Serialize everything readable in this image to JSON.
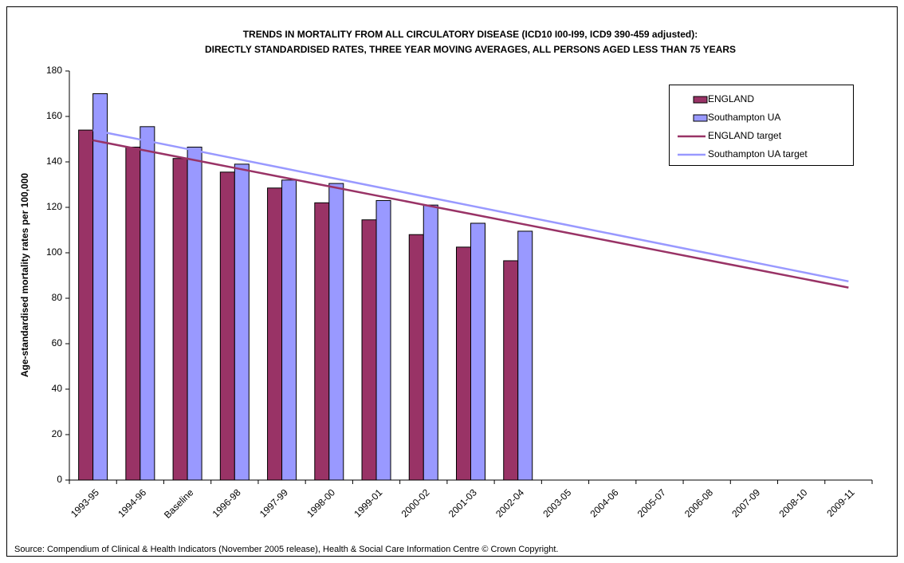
{
  "chart_data": {
    "type": "bar",
    "title": "TRENDS IN MORTALITY FROM ALL CIRCULATORY DISEASE (ICD10 I00-I99, ICD9 390-459 adjusted):",
    "subtitle": "DIRECTLY STANDARDISED RATES, THREE YEAR MOVING AVERAGES, ALL PERSONS AGED LESS THAN 75 YEARS",
    "y_label": "Age-standardised mortality rates per 100,000",
    "source": "Source: Compendium of Clinical & Health Indicators (November 2005 release), Health & Social Care Information Centre © Crown Copyright.",
    "categories": [
      "1993-95",
      "1994-96",
      "Baseline",
      "1996-98",
      "1997-99",
      "1998-00",
      "1999-01",
      "2000-02",
      "2001-03",
      "2002-04",
      "2003-05",
      "2004-06",
      "2005-07",
      "2006-08",
      "2007-09",
      "2008-10",
      "2009-11"
    ],
    "series": [
      {
        "name": "ENGLAND",
        "type": "bar",
        "color": "#993366",
        "values": [
          154,
          146.5,
          141.5,
          135.5,
          128.5,
          122,
          114.5,
          108,
          102.5,
          96.5,
          null,
          null,
          null,
          null,
          null,
          null,
          null
        ]
      },
      {
        "name": "Southampton UA",
        "type": "bar",
        "color": "#9999ff",
        "values": [
          170,
          155.5,
          146.5,
          139,
          132,
          130.5,
          123,
          121,
          113,
          109.5,
          null,
          null,
          null,
          null,
          null,
          null,
          null
        ]
      },
      {
        "name": "ENGLAND target",
        "type": "line",
        "color": "#993366",
        "values": [
          149.5,
          145.45,
          141.4,
          137.35,
          133.3,
          129.25,
          125.2,
          121.15,
          117.1,
          113.05,
          109,
          104.95,
          100.9,
          96.85,
          92.8,
          88.75,
          84.7
        ]
      },
      {
        "name": "Southampton UA target",
        "type": "line",
        "color": "#9999ff",
        "values": [
          154,
          149.84,
          145.68,
          141.52,
          137.36,
          133.2,
          129.04,
          124.88,
          120.72,
          116.56,
          112.4,
          108.24,
          104.08,
          99.92,
          95.76,
          91.6,
          87.44
        ]
      }
    ],
    "ylim": [
      0,
      180
    ],
    "yticks": [
      0,
      20,
      40,
      60,
      80,
      100,
      120,
      140,
      160,
      180
    ],
    "grid": false,
    "legend": "top-right"
  }
}
